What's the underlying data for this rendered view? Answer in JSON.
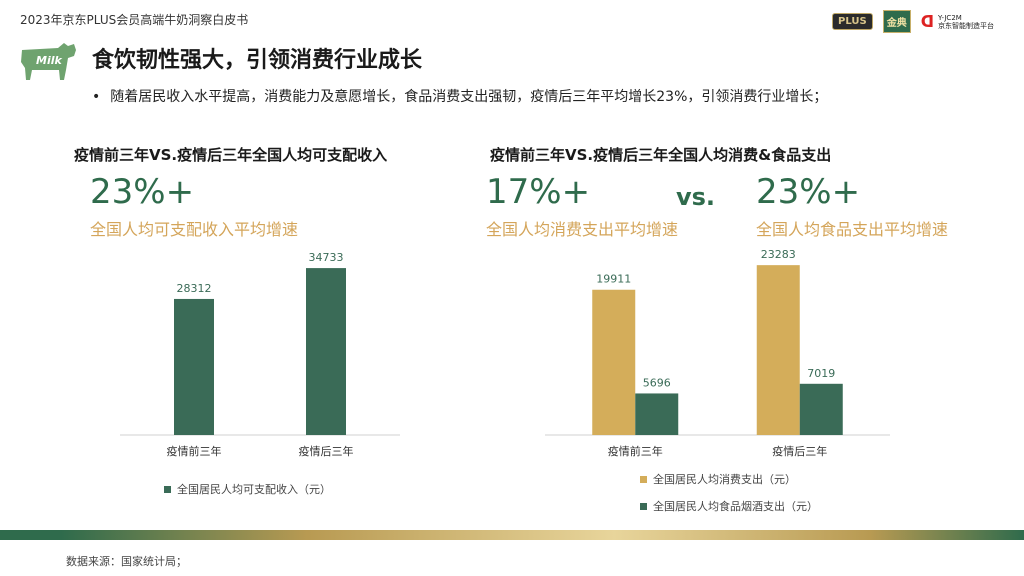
{
  "header": {
    "report_title": "2023年京东PLUS会员高端牛奶洞察白皮书",
    "logo_plus": "PLUS",
    "logo_jindian": "金典",
    "logo_yjc_line1": "Y-JC2M",
    "logo_yjc_line2": "京东智能制造平台",
    "cow_text": "Milk"
  },
  "slide": {
    "headline": "食饮韧性强大，引领消费行业成长",
    "bullet": "随着居民收入水平提高，消费能力及意愿增长，食品消费支出强韧，疫情后三年平均增长23%，引领消费行业增长；"
  },
  "left_panel": {
    "title": "疫情前三年VS.疫情后三年全国人均可支配收入",
    "big_value": "23%+",
    "big_note": "全国人均可支配收入平均增速"
  },
  "right_panel": {
    "title": "疫情前三年VS.疫情后三年全国人均消费&食品支出",
    "big_value_1": "17%+",
    "big_note_1": "全国人均消费支出平均增速",
    "vs_text": "vs.",
    "big_value_2": "23%+",
    "big_note_2": "全国人均食品支出平均增速"
  },
  "colors": {
    "green": "#3a6b57",
    "gold": "#d4ad5a"
  },
  "chart_data": [
    {
      "type": "bar",
      "categories": [
        "疫情前三年",
        "疫情后三年"
      ],
      "series": [
        {
          "name": "全国居民人均可支配收入（元）",
          "values": [
            28312,
            34733
          ],
          "color": "#3a6b57"
        }
      ],
      "ylim": [
        0,
        36000
      ]
    },
    {
      "type": "bar",
      "categories": [
        "疫情前三年",
        "疫情后三年"
      ],
      "series": [
        {
          "name": "全国居民人均消费支出（元）",
          "values": [
            19911,
            23283
          ],
          "color": "#d4ad5a"
        },
        {
          "name": "全国居民人均食品烟酒支出（元）",
          "values": [
            5696,
            7019
          ],
          "color": "#3a6b57"
        }
      ],
      "ylim": [
        0,
        24400
      ]
    }
  ],
  "footer": {
    "source": "数据来源：国家统计局；"
  }
}
